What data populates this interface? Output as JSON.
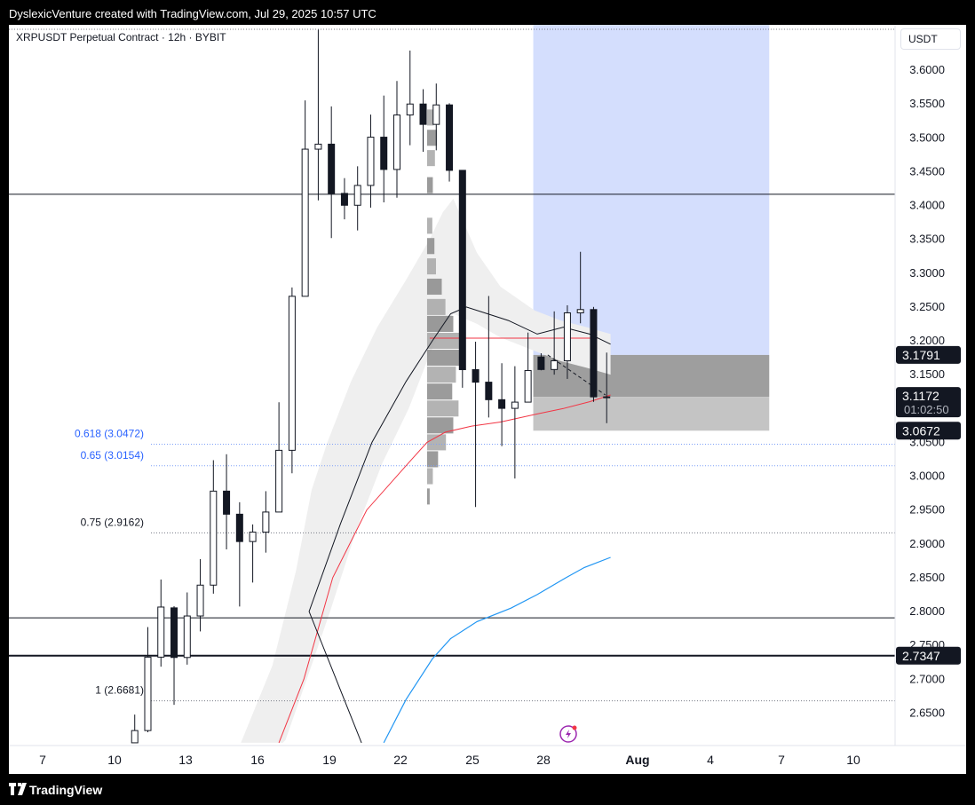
{
  "header": {
    "attribution": "DyslexicVenture created with TradingView.com, Jul 29, 2025 10:57 UTC"
  },
  "footer": {
    "brand": "TradingView"
  },
  "chart_header": {
    "symbol": "XRPUSDT Perpetual Contract · 12h · BYBIT",
    "currency": "USDT"
  },
  "chart_data": {
    "type": "candlestick",
    "symbol": "XRPUSDT Perpetual Contract",
    "interval": "12h",
    "exchange": "BYBIT",
    "y_axis": {
      "ticks": [
        "3.6000",
        "3.5500",
        "3.5000",
        "3.4500",
        "3.4000",
        "3.3500",
        "3.3000",
        "3.2500",
        "3.2000",
        "3.1500",
        "3.1000",
        "3.0500",
        "3.0000",
        "2.9500",
        "2.9000",
        "2.8500",
        "2.8000",
        "2.7500",
        "2.7000",
        "2.6500"
      ],
      "range": [
        2.606,
        3.6596
      ]
    },
    "x_axis": {
      "ticks": [
        "7",
        "10",
        "13",
        "16",
        "19",
        "22",
        "25",
        "28",
        "Aug",
        "4",
        "7",
        "10"
      ],
      "bold_ticks": [
        "Aug"
      ],
      "range_days": [
        6.35,
        40.15
      ]
    },
    "candles": [
      {
        "x": 11.15,
        "o": 2.606,
        "h": 2.6477,
        "l": 2.606,
        "c": 2.6241
      },
      {
        "x": 11.65,
        "o": 2.6241,
        "h": 2.777,
        "l": 2.6216,
        "c": 2.7326
      },
      {
        "x": 12.15,
        "o": 2.7326,
        "h": 2.8473,
        "l": 2.7185,
        "c": 2.8066
      },
      {
        "x": 12.65,
        "o": 2.8054,
        "h": 2.8079,
        "l": 2.6621,
        "c": 2.7321
      },
      {
        "x": 13.15,
        "o": 2.7321,
        "h": 2.8282,
        "l": 2.7215,
        "c": 2.7934
      },
      {
        "x": 13.65,
        "o": 2.7934,
        "h": 2.8774,
        "l": 2.7706,
        "c": 2.839
      },
      {
        "x": 14.15,
        "o": 2.839,
        "h": 3.0236,
        "l": 2.8264,
        "c": 2.9779
      },
      {
        "x": 14.65,
        "o": 2.9779,
        "h": 3.0324,
        "l": 2.8918,
        "c": 2.9438
      },
      {
        "x": 15.15,
        "o": 2.9438,
        "h": 2.9615,
        "l": 2.8074,
        "c": 2.9034
      },
      {
        "x": 15.65,
        "o": 2.9034,
        "h": 2.9287,
        "l": 2.8428,
        "c": 2.9173
      },
      {
        "x": 16.15,
        "o": 2.9173,
        "h": 2.9778,
        "l": 2.887,
        "c": 2.947
      },
      {
        "x": 16.65,
        "o": 2.947,
        "h": 3.1092,
        "l": 2.947,
        "c": 3.0382
      },
      {
        "x": 17.15,
        "o": 3.0382,
        "h": 3.2788,
        "l": 3.0042,
        "c": 3.2658
      },
      {
        "x": 17.65,
        "o": 3.2658,
        "h": 3.5552,
        "l": 3.2658,
        "c": 3.4832
      },
      {
        "x": 18.15,
        "o": 3.4832,
        "h": 3.6596,
        "l": 3.4075,
        "c": 3.4906
      },
      {
        "x": 18.65,
        "o": 3.4906,
        "h": 3.5464,
        "l": 3.3518,
        "c": 3.4178
      },
      {
        "x": 19.15,
        "o": 3.4178,
        "h": 3.4404,
        "l": 3.3795,
        "c": 3.4003
      },
      {
        "x": 19.65,
        "o": 3.4003,
        "h": 3.4579,
        "l": 3.3631,
        "c": 3.4296
      },
      {
        "x": 20.15,
        "o": 3.4296,
        "h": 3.5343,
        "l": 3.3968,
        "c": 3.5009
      },
      {
        "x": 20.65,
        "o": 3.5009,
        "h": 3.5624,
        "l": 3.4046,
        "c": 3.4532
      },
      {
        "x": 21.15,
        "o": 3.4532,
        "h": 3.5839,
        "l": 3.4115,
        "c": 3.5337
      },
      {
        "x": 21.65,
        "o": 3.5337,
        "h": 3.6289,
        "l": 3.489,
        "c": 3.5499
      },
      {
        "x": 22.15,
        "o": 3.5499,
        "h": 3.5718,
        "l": 3.4793,
        "c": 3.5198
      },
      {
        "x": 22.65,
        "o": 3.5198,
        "h": 3.5802,
        "l": 3.4815,
        "c": 3.5486
      },
      {
        "x": 23.15,
        "o": 3.5486,
        "h": 3.551,
        "l": 3.4353,
        "c": 3.4519
      },
      {
        "x": 23.65,
        "o": 3.4519,
        "h": 3.4519,
        "l": 3.1306,
        "c": 3.1574
      },
      {
        "x": 24.15,
        "o": 3.1574,
        "h": 3.1987,
        "l": 2.9545,
        "c": 3.1389
      },
      {
        "x": 24.65,
        "o": 3.1389,
        "h": 3.2662,
        "l": 3.0867,
        "c": 3.113
      },
      {
        "x": 25.15,
        "o": 3.113,
        "h": 3.1669,
        "l": 3.0444,
        "c": 3.1002
      },
      {
        "x": 25.65,
        "o": 3.1002,
        "h": 3.1625,
        "l": 2.9965,
        "c": 3.1094
      },
      {
        "x": 26.15,
        "o": 3.1094,
        "h": 3.2122,
        "l": 3.1094,
        "c": 3.1561
      },
      {
        "x": 26.65,
        "o": 3.1761,
        "h": 3.1816,
        "l": 3.1564,
        "c": 3.1576
      },
      {
        "x": 27.15,
        "o": 3.1576,
        "h": 3.2435,
        "l": 3.15,
        "c": 3.1705
      },
      {
        "x": 27.65,
        "o": 3.1705,
        "h": 3.2525,
        "l": 3.1437,
        "c": 3.2413
      },
      {
        "x": 28.15,
        "o": 3.2413,
        "h": 3.3315,
        "l": 3.2259,
        "c": 3.2462
      },
      {
        "x": 28.65,
        "o": 3.2462,
        "h": 3.2501,
        "l": 3.1098,
        "c": 3.1172
      },
      {
        "x": 29.15,
        "o": 3.1172,
        "h": 3.1826,
        "l": 3.0783,
        "c": 3.1172
      }
    ],
    "horizontal_lines": [
      {
        "y": 3.4166,
        "style": "solid"
      },
      {
        "y": 2.7906,
        "style": "solid"
      },
      {
        "y": 2.7347,
        "style": "solid-bold"
      }
    ],
    "fib_levels": [
      {
        "label": "0.618 (3.0472)",
        "value": 3.0472,
        "color": "#2962ff"
      },
      {
        "label": "0.65 (3.0154)",
        "value": 3.0154,
        "color": "#2962ff"
      },
      {
        "label": "0.75 (2.9162)",
        "value": 2.9162,
        "color": "#131722"
      },
      {
        "label": "1 (2.6681)",
        "value": 2.6681,
        "color": "#131722"
      }
    ],
    "long_position": {
      "x_range": [
        26.35,
        35.35
      ],
      "target": 3.6596,
      "entry": 3.1791,
      "stop": 3.0672,
      "current": 3.1172,
      "target_color": "#d4defd",
      "stop_color": "#c4c4c4"
    },
    "price_labels": [
      {
        "value": 3.1791,
        "text": "3.1791"
      },
      {
        "value": 3.1172,
        "text": "3.1172",
        "sub": "01:02:50"
      },
      {
        "value": 3.0672,
        "text": "3.0672"
      },
      {
        "value": 2.7347,
        "text": "2.7347"
      }
    ],
    "ma_fast": {
      "color": "#131722",
      "points": [
        [
          19.8,
          2.606
        ],
        [
          17.8,
          2.8
        ],
        [
          19.0,
          2.93
        ],
        [
          20.2,
          3.05
        ],
        [
          21.5,
          3.14
        ],
        [
          22.5,
          3.2
        ],
        [
          23.2,
          3.24
        ],
        [
          23.8,
          3.25
        ],
        [
          24.6,
          3.24
        ],
        [
          25.4,
          3.23
        ],
        [
          26.5,
          3.21
        ],
        [
          27.5,
          3.22
        ],
        [
          28.5,
          3.21
        ],
        [
          29.3,
          3.195
        ]
      ]
    },
    "ma_red": {
      "color": "#f23645",
      "points": [
        [
          16.65,
          2.606
        ],
        [
          17.6,
          2.7
        ],
        [
          18.7,
          2.85
        ],
        [
          20.0,
          2.95
        ],
        [
          21.6,
          3.02
        ],
        [
          22.3,
          3.05
        ],
        [
          23.0,
          3.065
        ],
        [
          24.0,
          3.074
        ],
        [
          25.1,
          3.08
        ],
        [
          26.5,
          3.092
        ],
        [
          27.5,
          3.1
        ],
        [
          28.5,
          3.11
        ],
        [
          29.3,
          3.12
        ]
      ]
    },
    "ma_blue": {
      "color": "#2196f3",
      "points": [
        [
          20.65,
          2.606
        ],
        [
          21.5,
          2.67
        ],
        [
          22.5,
          2.73
        ],
        [
          23.2,
          2.76
        ],
        [
          24.2,
          2.785
        ],
        [
          25.5,
          2.805
        ],
        [
          26.5,
          2.825
        ],
        [
          27.6,
          2.85
        ],
        [
          28.3,
          2.865
        ],
        [
          29.3,
          2.88
        ]
      ]
    },
    "ribbon": {
      "color": "#efefef",
      "upper": [
        [
          15.2,
          2.606
        ],
        [
          16.4,
          2.72
        ],
        [
          17.3,
          2.86
        ],
        [
          17.9,
          2.98
        ],
        [
          18.5,
          3.05
        ],
        [
          19.4,
          3.14
        ],
        [
          20.4,
          3.22
        ],
        [
          21.5,
          3.29
        ],
        [
          22.4,
          3.35
        ],
        [
          22.9,
          3.39
        ],
        [
          23.3,
          3.41
        ],
        [
          24.2,
          3.33
        ],
        [
          25.1,
          3.28
        ],
        [
          26.4,
          3.245
        ],
        [
          27.4,
          3.23
        ],
        [
          28.4,
          3.22
        ],
        [
          29.3,
          3.21
        ]
      ],
      "lower": [
        [
          29.3,
          3.15
        ],
        [
          28.4,
          3.16
        ],
        [
          27.4,
          3.17
        ],
        [
          26.4,
          3.185
        ],
        [
          25.1,
          3.205
        ],
        [
          24.2,
          3.225
        ],
        [
          23.3,
          3.24
        ],
        [
          22.9,
          3.22
        ],
        [
          22.4,
          3.18
        ],
        [
          21.6,
          3.1
        ],
        [
          20.6,
          3.02
        ],
        [
          19.6,
          2.92
        ],
        [
          18.6,
          2.8
        ],
        [
          17.8,
          2.71
        ],
        [
          16.9,
          2.61
        ],
        [
          16.8,
          2.606
        ]
      ]
    },
    "volume_profile": {
      "x_start": 22.3,
      "bins": [
        {
          "y": 3.53,
          "w": 0.25
        },
        {
          "y": 3.5,
          "w": 0.38
        },
        {
          "y": 3.47,
          "w": 0.3
        },
        {
          "y": 3.43,
          "w": 0.22
        },
        {
          "y": 3.37,
          "w": 0.2
        },
        {
          "y": 3.34,
          "w": 0.28
        },
        {
          "y": 3.31,
          "w": 0.34
        },
        {
          "y": 3.28,
          "w": 0.56
        },
        {
          "y": 3.25,
          "w": 0.7
        },
        {
          "y": 3.225,
          "w": 1.0
        },
        {
          "y": 3.2,
          "w": 1.24
        },
        {
          "y": 3.175,
          "w": 1.46
        },
        {
          "y": 3.15,
          "w": 1.1
        },
        {
          "y": 3.125,
          "w": 0.96
        },
        {
          "y": 3.1,
          "w": 1.2
        },
        {
          "y": 3.075,
          "w": 1.0
        },
        {
          "y": 3.05,
          "w": 0.72
        },
        {
          "y": 3.025,
          "w": 0.42
        },
        {
          "y": 3.0,
          "w": 0.22
        },
        {
          "y": 2.97,
          "w": 0.1
        }
      ]
    },
    "dashed_segment": [
      [
        26.9,
        3.1791
      ],
      [
        29.1,
        3.12
      ]
    ],
    "red_hline": {
      "y": 3.204,
      "x_range": [
        22.4,
        28.8
      ]
    }
  }
}
